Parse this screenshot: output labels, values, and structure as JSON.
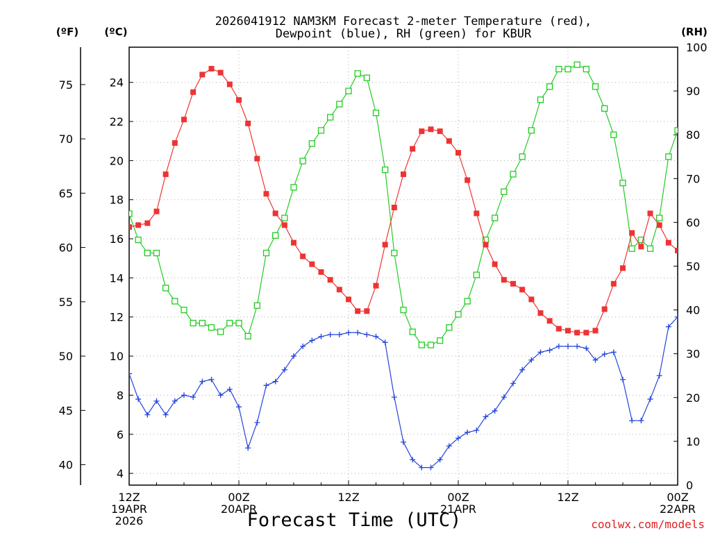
{
  "title_line1": "2026041912 NAM3KM Forecast 2-meter Temperature (red),",
  "title_line2": "Dewpoint (blue), RH (green) for KBUR",
  "unit_f": "(ºF)",
  "unit_c": "(ºC)",
  "unit_rh": "(RH)",
  "credit": "coolwx.com/models",
  "colors": {
    "temperature": "#ee3333",
    "dewpoint": "#2244dd",
    "rh": "#22cc22",
    "grid": "#aaaaaa"
  },
  "chart_data": {
    "type": "line",
    "xlabel": "Forecast Time (UTC)",
    "x_hours": [
      0,
      1,
      2,
      3,
      4,
      5,
      6,
      7,
      8,
      9,
      10,
      11,
      12,
      13,
      14,
      15,
      16,
      17,
      18,
      19,
      20,
      21,
      22,
      23,
      24,
      25,
      26,
      27,
      28,
      29,
      30,
      31,
      32,
      33,
      34,
      35,
      36,
      37,
      38,
      39,
      40,
      41,
      42,
      43,
      44,
      45,
      46,
      47,
      48,
      49,
      50,
      51,
      52,
      53,
      54,
      55,
      56,
      57,
      58,
      59,
      60
    ],
    "x_ticks": [
      {
        "hour": 0,
        "l1": "12Z",
        "l2": "19APR",
        "l3": "2026"
      },
      {
        "hour": 12,
        "l1": "00Z",
        "l2": "20APR",
        "l3": ""
      },
      {
        "hour": 24,
        "l1": "12Z",
        "l2": "",
        "l3": ""
      },
      {
        "hour": 36,
        "l1": "00Z",
        "l2": "21APR",
        "l3": ""
      },
      {
        "hour": 48,
        "l1": "12Z",
        "l2": "",
        "l3": ""
      },
      {
        "hour": 60,
        "l1": "00Z",
        "l2": "22APR",
        "l3": ""
      }
    ],
    "xlim": [
      0,
      60
    ],
    "celsius_axis": {
      "label": "(ºC)",
      "ylim": [
        3.4,
        25.8
      ],
      "ticks": [
        4,
        6,
        8,
        10,
        12,
        14,
        16,
        18,
        20,
        22,
        24
      ]
    },
    "fahrenheit_axis": {
      "label": "(ºF)",
      "ticks": [
        40,
        45,
        50,
        55,
        60,
        65,
        70,
        75
      ]
    },
    "rh_axis": {
      "label": "(RH)",
      "ylim": [
        0,
        100
      ],
      "ticks": [
        0,
        10,
        20,
        30,
        40,
        50,
        60,
        70,
        80,
        90,
        100
      ]
    },
    "series": [
      {
        "name": "Temperature",
        "unit": "C",
        "marker": "filled-square",
        "values": [
          16.6,
          16.7,
          16.8,
          17.4,
          19.3,
          20.9,
          22.1,
          23.5,
          24.4,
          24.7,
          24.5,
          23.9,
          23.1,
          21.9,
          20.1,
          18.3,
          17.3,
          16.7,
          15.8,
          15.1,
          14.7,
          14.3,
          13.9,
          13.4,
          12.9,
          12.3,
          12.3,
          13.6,
          15.7,
          17.6,
          19.3,
          20.6,
          21.5,
          21.6,
          21.5,
          21.0,
          20.4,
          19.0,
          17.3,
          15.7,
          14.7,
          13.9,
          13.7,
          13.4,
          12.9,
          12.2,
          11.8,
          11.4,
          11.3,
          11.2,
          11.2,
          11.3,
          12.4,
          13.7,
          14.5,
          16.3,
          15.6,
          17.3,
          16.7,
          15.8,
          15.4
        ]
      },
      {
        "name": "Dewpoint",
        "unit": "C",
        "marker": "plus",
        "values": [
          9.1,
          7.8,
          7.0,
          7.7,
          7.0,
          7.7,
          8.0,
          7.9,
          8.7,
          8.8,
          8.0,
          8.3,
          7.4,
          5.3,
          6.6,
          8.5,
          8.7,
          9.3,
          10.0,
          10.5,
          10.8,
          11.0,
          11.1,
          11.1,
          11.2,
          11.2,
          11.1,
          11.0,
          10.7,
          7.9,
          5.6,
          4.7,
          4.3,
          4.3,
          4.7,
          5.4,
          5.8,
          6.1,
          6.2,
          6.9,
          7.2,
          7.9,
          8.6,
          9.3,
          9.8,
          10.2,
          10.3,
          10.5,
          10.5,
          10.5,
          10.4,
          9.8,
          10.1,
          10.2,
          8.8,
          6.7,
          6.7,
          7.8,
          9.0,
          11.5,
          12.0
        ]
      },
      {
        "name": "RH",
        "unit": "%",
        "marker": "open-square",
        "values": [
          62,
          56,
          53,
          53,
          45,
          42,
          40,
          37,
          37,
          36,
          35,
          37,
          37,
          34,
          41,
          53,
          57,
          61,
          68,
          74,
          78,
          81,
          84,
          87,
          90,
          94,
          93,
          85,
          72,
          53,
          40,
          35,
          32,
          32,
          33,
          36,
          39,
          42,
          48,
          56,
          61,
          67,
          71,
          75,
          81,
          88,
          91,
          95,
          95,
          96,
          95,
          91,
          86,
          80,
          69,
          54,
          56,
          54,
          61,
          75,
          81
        ]
      }
    ]
  }
}
